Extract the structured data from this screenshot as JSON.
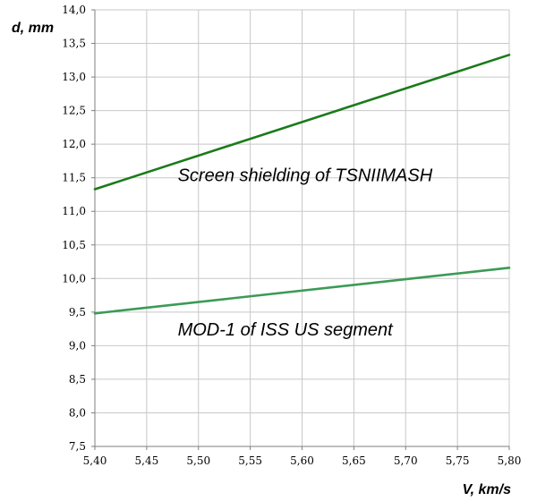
{
  "chart_data": {
    "type": "line",
    "title": "",
    "xlabel": "V, km/s",
    "ylabel": "d, mm",
    "xlim": [
      5.4,
      5.8
    ],
    "ylim": [
      7.5,
      14.0
    ],
    "x_ticks": [
      "5,40",
      "5,45",
      "5,50",
      "5,55",
      "5,60",
      "5,65",
      "5,70",
      "5,75",
      "5,80"
    ],
    "y_ticks": [
      "7,5",
      "8,0",
      "8,5",
      "9,0",
      "9,5",
      "10,0",
      "10,5",
      "11,0",
      "11,5",
      "12,0",
      "12,5",
      "13,0",
      "13,5",
      "14,0"
    ],
    "grid": true,
    "legend": "none",
    "series": [
      {
        "color": "#1b7a1b",
        "x": [
          5.4,
          5.8
        ],
        "y": [
          11.33,
          13.33
        ]
      },
      {
        "color": "#3c9a55",
        "x": [
          5.4,
          5.8
        ],
        "y": [
          9.48,
          10.16
        ]
      }
    ],
    "annotations": [
      {
        "text": "Screen shielding of  TSNIIMASH",
        "x": 5.48,
        "y": 11.45
      },
      {
        "text": "MOD-1 of ISS US segment",
        "x": 5.48,
        "y": 9.15
      }
    ]
  }
}
